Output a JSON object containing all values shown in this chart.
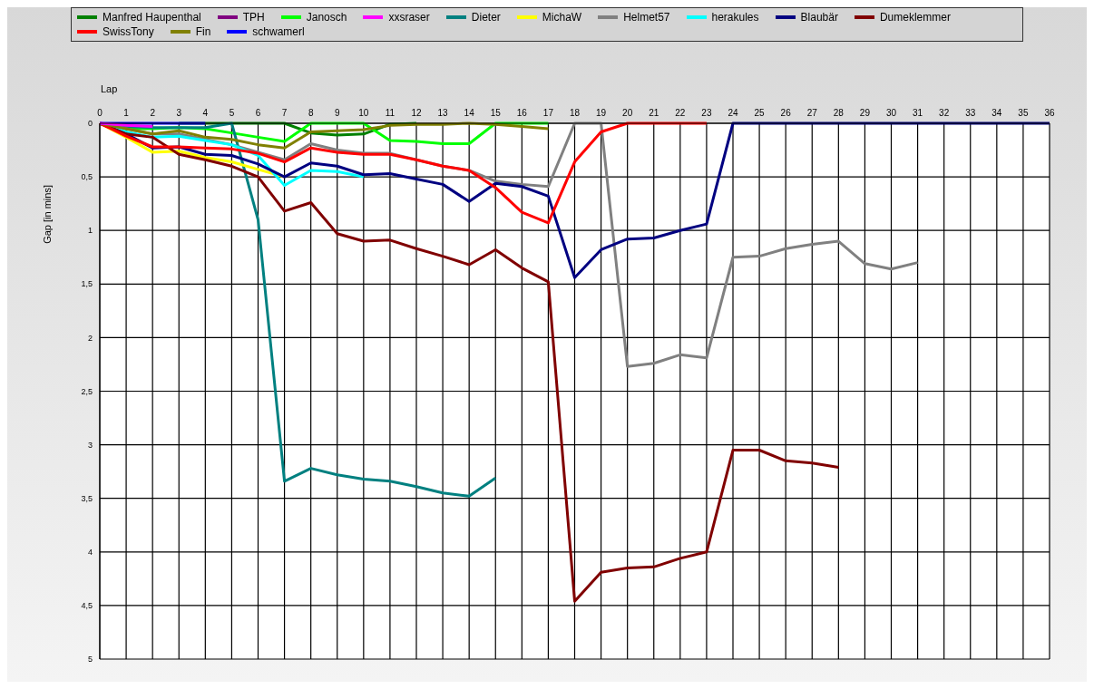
{
  "chart_data": {
    "type": "line",
    "xlabel": "Lap",
    "ylabel": "Gap [in mins]",
    "legend": "top",
    "grid": true,
    "marker": "none",
    "line_style": "solid",
    "x": [
      0,
      1,
      2,
      3,
      4,
      5,
      6,
      7,
      8,
      9,
      10,
      11,
      12,
      13,
      14,
      15,
      16,
      17,
      18,
      19,
      20,
      21,
      22,
      23,
      24,
      25,
      26,
      27,
      28,
      29,
      30,
      31,
      32,
      33,
      34,
      35,
      36
    ],
    "xlim": [
      0,
      36
    ],
    "xticks": [
      0,
      1,
      2,
      3,
      4,
      5,
      6,
      7,
      8,
      9,
      10,
      11,
      12,
      13,
      14,
      15,
      16,
      17,
      18,
      19,
      20,
      21,
      22,
      23,
      24,
      25,
      26,
      27,
      28,
      29,
      30,
      31,
      32,
      33,
      34,
      35,
      36
    ],
    "ylim": [
      5,
      0
    ],
    "yticks": [
      0,
      {
        "value": 0.5,
        "label": "0,5"
      },
      1,
      {
        "value": 1.5,
        "label": "1,5"
      },
      2,
      {
        "value": 2.5,
        "label": "2,5"
      },
      3,
      {
        "value": 3.5,
        "label": "3,5"
      },
      4,
      {
        "value": 4.5,
        "label": "4,5"
      },
      5
    ],
    "series": [
      {
        "name": "Manfred Haupenthal",
        "color": "#008000",
        "values": [
          null,
          null,
          null,
          0,
          0,
          0,
          0,
          0,
          0.09,
          0.11,
          0.1,
          0.01,
          0,
          null,
          null,
          null,
          null,
          null,
          null,
          null,
          null,
          null,
          null,
          null,
          null,
          null,
          null,
          null,
          null,
          null,
          null,
          null,
          null,
          null,
          null,
          null,
          null
        ]
      },
      {
        "name": "TPH",
        "color": "#800080",
        "values": [
          null,
          null,
          null,
          null,
          null,
          null,
          null,
          null,
          null,
          null,
          null,
          null,
          null,
          null,
          null,
          null,
          null,
          null,
          null,
          null,
          null,
          null,
          null,
          null,
          null,
          null,
          null,
          null,
          null,
          null,
          null,
          null,
          null,
          null,
          null,
          null,
          null
        ]
      },
      {
        "name": "Janosch",
        "color": "#00ff00",
        "values": [
          0,
          0.05,
          0.05,
          0.04,
          0.05,
          0.09,
          0.13,
          0.17,
          0,
          0,
          0,
          0.16,
          0.17,
          0.19,
          0.19,
          0,
          0,
          0,
          null,
          null,
          null,
          null,
          null,
          null,
          null,
          null,
          null,
          null,
          null,
          null,
          null,
          null,
          null,
          null,
          null,
          null,
          null
        ]
      },
      {
        "name": "xxsraser",
        "color": "#ff00ff",
        "values": [
          0,
          0.02,
          0.03,
          null,
          null,
          null,
          null,
          null,
          null,
          null,
          null,
          null,
          null,
          null,
          null,
          null,
          null,
          null,
          null,
          null,
          null,
          null,
          null,
          null,
          null,
          null,
          null,
          null,
          null,
          null,
          null,
          null,
          null,
          null,
          null,
          null,
          null
        ]
      },
      {
        "name": "Dieter",
        "color": "#008080",
        "values": [
          0,
          0.03,
          0.04,
          0.04,
          0.04,
          0,
          0.9,
          3.34,
          3.22,
          3.28,
          3.32,
          3.34,
          3.39,
          3.45,
          3.48,
          3.31,
          null,
          null,
          null,
          null,
          null,
          null,
          null,
          null,
          null,
          null,
          null,
          null,
          null,
          null,
          null,
          null,
          null,
          null,
          null,
          null,
          null
        ]
      },
      {
        "name": "MichaW",
        "color": "#ffff00",
        "values": [
          0,
          0.13,
          0.27,
          0.26,
          0.32,
          0.36,
          0.43,
          0.5,
          null,
          null,
          null,
          null,
          null,
          null,
          null,
          null,
          null,
          null,
          null,
          null,
          null,
          null,
          null,
          null,
          null,
          null,
          null,
          null,
          null,
          null,
          null,
          null,
          null,
          null,
          null,
          null,
          null
        ]
      },
      {
        "name": "Helmet57",
        "color": "#808080",
        "values": [
          0,
          0.05,
          0.1,
          0.1,
          0.15,
          0.2,
          0.27,
          0.34,
          0.19,
          0.25,
          0.28,
          0.28,
          0.34,
          0.4,
          0.44,
          0.54,
          0.57,
          0.59,
          0,
          0,
          2.27,
          2.24,
          2.16,
          2.19,
          1.25,
          1.24,
          1.17,
          1.13,
          1.1,
          1.31,
          1.36,
          1.3,
          null,
          null,
          null,
          null,
          null
        ]
      },
      {
        "name": "herakules",
        "color": "#00ffff",
        "values": [
          0,
          0.08,
          0.13,
          0.12,
          0.16,
          0.2,
          0.3,
          0.58,
          0.44,
          0.45,
          0.5,
          null,
          null,
          null,
          null,
          null,
          null,
          null,
          null,
          null,
          null,
          null,
          null,
          null,
          null,
          null,
          null,
          null,
          null,
          null,
          null,
          null,
          null,
          null,
          null,
          null,
          null
        ]
      },
      {
        "name": "Blaubär",
        "color": "#000080",
        "values": [
          0,
          0.1,
          0.23,
          0.22,
          0.29,
          0.3,
          0.38,
          0.5,
          0.37,
          0.4,
          0.48,
          0.47,
          0.52,
          0.57,
          0.73,
          0.56,
          0.59,
          0.68,
          1.44,
          1.18,
          1.08,
          1.07,
          1.0,
          0.94,
          0,
          0,
          0,
          0,
          0,
          0,
          0,
          0,
          0,
          0,
          0,
          0,
          0
        ]
      },
      {
        "name": "Dumeklemmer",
        "color": "#800000",
        "values": [
          0,
          0.1,
          0.13,
          0.29,
          0.34,
          0.4,
          0.5,
          0.82,
          0.74,
          1.03,
          1.1,
          1.09,
          1.17,
          1.24,
          1.32,
          1.18,
          1.35,
          1.48,
          4.46,
          4.19,
          4.15,
          4.14,
          4.06,
          4.0,
          3.05,
          3.05,
          3.15,
          3.17,
          3.21,
          null,
          null,
          null,
          null,
          null,
          null,
          null,
          null
        ]
      },
      {
        "name": "SwissTony",
        "color": "#ff0000",
        "values": [
          0,
          0.12,
          0.22,
          0.22,
          0.23,
          0.24,
          0.28,
          0.36,
          0.23,
          0.27,
          0.29,
          0.29,
          0.34,
          0.4,
          0.44,
          0.6,
          0.83,
          0.93,
          0.36,
          0.08,
          0,
          0,
          0,
          0,
          null,
          null,
          null,
          null,
          null,
          null,
          null,
          null,
          null,
          null,
          null,
          null,
          null
        ]
      },
      {
        "name": "Fin",
        "color": "#808000",
        "values": [
          0,
          0.05,
          0.1,
          0.07,
          0.13,
          0.15,
          0.2,
          0.23,
          0.08,
          0.07,
          0.06,
          0.02,
          0.01,
          0.01,
          0,
          0.01,
          0.03,
          0.05,
          null,
          null,
          null,
          null,
          null,
          null,
          null,
          null,
          null,
          null,
          null,
          null,
          null,
          null,
          null,
          null,
          null,
          null,
          null
        ]
      },
      {
        "name": "schwamerl",
        "color": "#0000ff",
        "values": [
          0,
          0,
          0,
          0,
          0,
          null,
          null,
          null,
          null,
          null,
          null,
          null,
          null,
          null,
          null,
          null,
          null,
          null,
          null,
          null,
          null,
          null,
          null,
          null,
          null,
          null,
          null,
          null,
          null,
          null,
          null,
          null,
          null,
          null,
          null,
          null,
          null
        ]
      }
    ]
  }
}
